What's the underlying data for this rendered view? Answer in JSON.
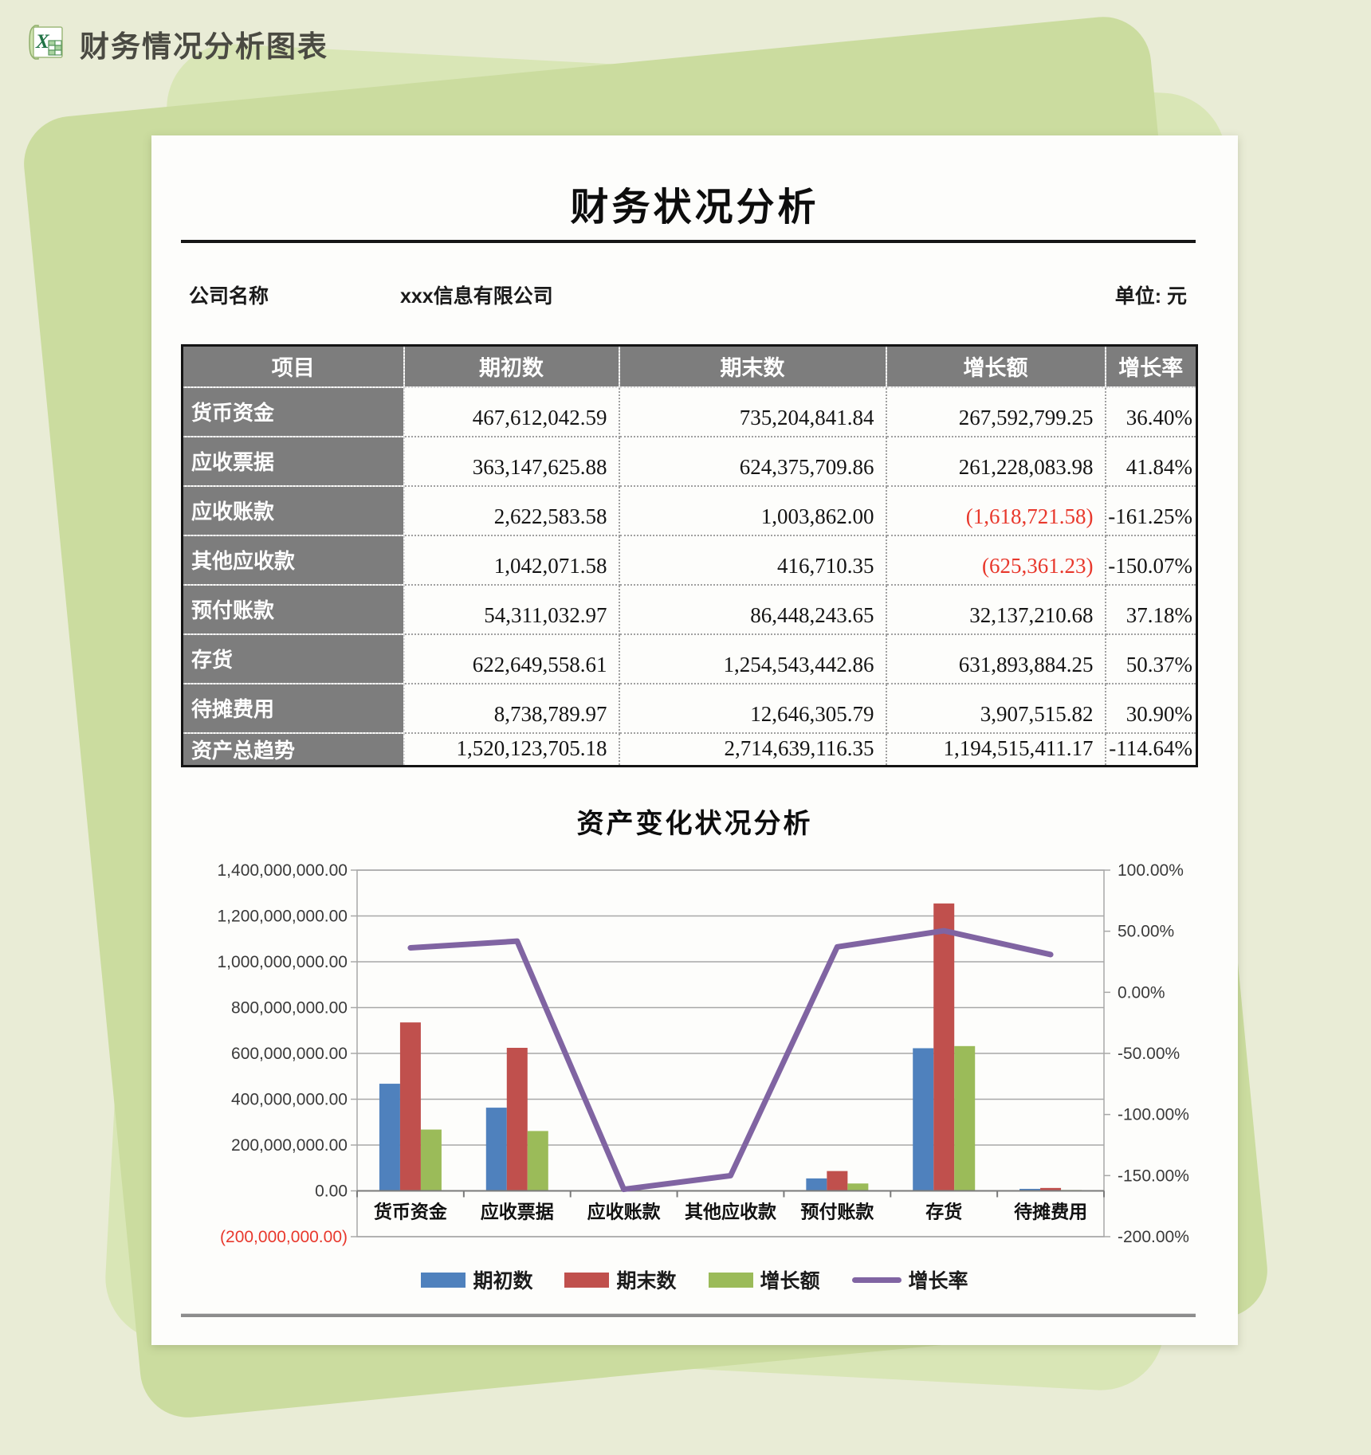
{
  "header": {
    "app_title": "财务情况分析图表",
    "icon": "excel-icon"
  },
  "page": {
    "title": "财务状况分析",
    "company_label": "公司名称",
    "company_name": "xxx信息有限公司",
    "unit_label": "单位: 元"
  },
  "table": {
    "headers": [
      "项目",
      "期初数",
      "期末数",
      "增长额",
      "增长率"
    ],
    "rows": [
      {
        "item": "货币资金",
        "begin": "467,612,042.59",
        "end": "735,204,841.84",
        "growth": "267,592,799.25",
        "rate": "36.40%"
      },
      {
        "item": "应收票据",
        "begin": "363,147,625.88",
        "end": "624,375,709.86",
        "growth": "261,228,083.98",
        "rate": "41.84%"
      },
      {
        "item": "应收账款",
        "begin": "2,622,583.58",
        "end": "1,003,862.00",
        "growth": "(1,618,721.58)",
        "rate": "-161.25%"
      },
      {
        "item": "其他应收款",
        "begin": "1,042,071.58",
        "end": "416,710.35",
        "growth": "(625,361.23)",
        "rate": "-150.07%"
      },
      {
        "item": "预付账款",
        "begin": "54,311,032.97",
        "end": "86,448,243.65",
        "growth": "32,137,210.68",
        "rate": "37.18%"
      },
      {
        "item": "存货",
        "begin": "622,649,558.61",
        "end": "1,254,543,442.86",
        "growth": "631,893,884.25",
        "rate": "50.37%"
      },
      {
        "item": "待摊费用",
        "begin": "8,738,789.97",
        "end": "12,646,305.79",
        "growth": "3,907,515.82",
        "rate": "30.90%"
      },
      {
        "item": "资产总趋势",
        "begin": "1,520,123,705.18",
        "end": "2,714,639,116.35",
        "growth": "1,194,515,411.17",
        "rate": "-114.64%"
      }
    ]
  },
  "chart_data": {
    "type": "combo-bar-line",
    "title": "资产变化状况分析",
    "categories": [
      "货币资金",
      "应收票据",
      "应收账款",
      "其他应收款",
      "预付账款",
      "存货",
      "待摊费用"
    ],
    "series": [
      {
        "name": "期初数",
        "type": "bar",
        "color": "#4f81bd",
        "values": [
          467612042.59,
          363147625.88,
          2622583.58,
          1042071.58,
          54311032.97,
          622649558.61,
          8738789.97
        ]
      },
      {
        "name": "期末数",
        "type": "bar",
        "color": "#c0504d",
        "values": [
          735204841.84,
          624375709.86,
          1003862.0,
          416710.35,
          86448243.65,
          1254543442.86,
          12646305.79
        ]
      },
      {
        "name": "增长额",
        "type": "bar",
        "color": "#9bbb59",
        "values": [
          267592799.25,
          261228083.98,
          -1618721.58,
          -625361.23,
          32137210.68,
          631893884.25,
          3907515.82
        ]
      },
      {
        "name": "增长率",
        "type": "line",
        "axis": "right",
        "color": "#8064a2",
        "values": [
          36.4,
          41.84,
          -161.25,
          -150.07,
          37.18,
          50.37,
          30.9
        ]
      }
    ],
    "left_axis": {
      "max": 1400000000,
      "min": -200000000,
      "step": 200000000,
      "labels": [
        "1,400,000,000.00",
        "1,200,000,000.00",
        "1,000,000,000.00",
        "800,000,000.00",
        "600,000,000.00",
        "400,000,000.00",
        "200,000,000.00",
        "0.00",
        "(200,000,000.00)"
      ]
    },
    "right_axis": {
      "max": 100,
      "min": -200,
      "step": 50,
      "labels": [
        "100.00%",
        "50.00%",
        "0.00%",
        "-50.00%",
        "-100.00%",
        "-150.00%",
        "-200.00%"
      ]
    },
    "legend_position": "bottom",
    "grid": true
  },
  "colors": {
    "canvas_bg": "#e9ecd6",
    "shape_green": "#cbdc9f",
    "table_header_bg": "#7d7d7d",
    "negative_red": "#e8382c",
    "grid_gray": "#a8a8a8"
  }
}
